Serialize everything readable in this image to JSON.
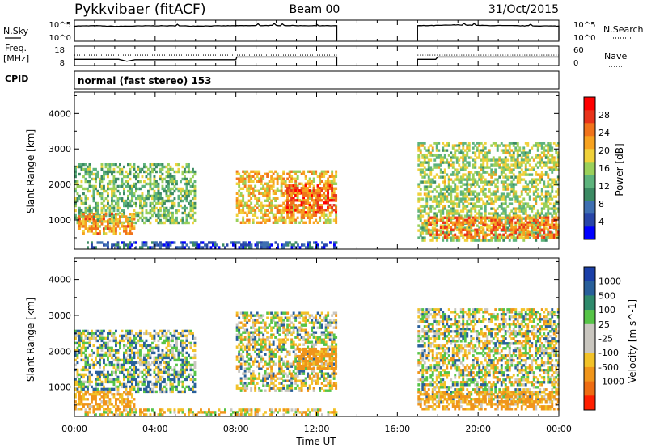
{
  "header": {
    "station": "Pykkvibaer (fitACF)",
    "beam": "Beam 00",
    "date": "31/Oct/2015"
  },
  "panels": {
    "nsky": {
      "left_label": "N.Sky",
      "right_label": "N.Search",
      "left_ticks": [
        "10^5",
        "10^0"
      ],
      "right_ticks": [
        "10^5",
        "10^0"
      ]
    },
    "freq": {
      "left_label_1": "Freq.",
      "left_label_2": "[MHz]",
      "right_label": "Nave",
      "left_ticks": [
        "18",
        "8"
      ],
      "right_ticks": [
        "60",
        "0"
      ]
    },
    "cpid": {
      "label": "CPID",
      "text": "normal (fast stereo) 153"
    }
  },
  "colors": {
    "power_scale": [
      "#0000ff",
      "#2845a8",
      "#3e6fb1",
      "#3b8a63",
      "#5db37c",
      "#9ad05a",
      "#f0d13a",
      "#f7a21f",
      "#f1731b",
      "#e8331a",
      "#ff0000"
    ],
    "velocity_scale": [
      "#1a3fa8",
      "#285f9a",
      "#2e8a6b",
      "#56c447",
      "#c9c6bf",
      "#c9c6bf",
      "#f2c228",
      "#f0951a",
      "#ee6c12",
      "#ff1f00"
    ]
  },
  "chart_data": [
    {
      "type": "line",
      "panel": "N.Sky / N.Search",
      "xlabel": "",
      "ylabel": "N.Sky",
      "x_unit": "hours UT",
      "xlim": [
        0,
        24
      ],
      "ylim_log10": [
        0,
        5
      ],
      "gaps": [
        [
          13.0,
          17.0
        ]
      ],
      "series": [
        {
          "name": "N.Sky",
          "style": "solid",
          "x": [
            0,
            1,
            2,
            3,
            4,
            6,
            8,
            10,
            12,
            13
          ],
          "y_log10": [
            4.1,
            4.2,
            4.0,
            4.1,
            4.2,
            4.1,
            4.2,
            4.3,
            4.2,
            4.2
          ]
        },
        {
          "name": "N.Search",
          "style": "dotted",
          "x": [
            17,
            18,
            19,
            20,
            22,
            24
          ],
          "y_log10": [
            4.2,
            4.3,
            4.5,
            4.3,
            4.2,
            4.1
          ]
        }
      ]
    },
    {
      "type": "line",
      "panel": "Freq. / Nave",
      "ylabel": "Freq. [MHz]",
      "xlim": [
        0,
        24
      ],
      "ylim": [
        8,
        18
      ],
      "gaps": [
        [
          13.0,
          17.0
        ]
      ],
      "series": [
        {
          "name": "Freq.",
          "style": "solid",
          "x": [
            0,
            2.2,
            2.6,
            3.0,
            8.0,
            8.05,
            13,
            17,
            17.9,
            18.0,
            24
          ],
          "y": [
            11.2,
            11.2,
            10.2,
            11.0,
            11.0,
            12.4,
            12.4,
            11.2,
            11.2,
            12.4,
            12.4
          ]
        },
        {
          "name": "Nave",
          "style": "dotted",
          "x": [
            0,
            13,
            17,
            24
          ],
          "y": [
            13.4,
            13.4,
            13.4,
            13.4
          ]
        }
      ]
    },
    {
      "type": "heatmap",
      "panel": "Power",
      "ylabel": "Slant Range [km]",
      "colorbar_label": "Power [dB]",
      "xlim": [
        0,
        24
      ],
      "ylim": [
        180,
        4600
      ],
      "yticks": [
        1000,
        2000,
        3000,
        4000
      ],
      "colorbar_ticks": [
        4,
        8,
        12,
        16,
        20,
        24,
        28
      ],
      "colorbar_range": [
        0,
        32
      ],
      "echo_regions_hours_km": [
        {
          "t": [
            0.0,
            6.0
          ],
          "range": [
            900,
            2600
          ],
          "level_db": 14
        },
        {
          "t": [
            0.2,
            3.0
          ],
          "range": [
            600,
            1200
          ],
          "level_db": 22
        },
        {
          "t": [
            8.0,
            13.0
          ],
          "range": [
            900,
            2400
          ],
          "level_db": 20
        },
        {
          "t": [
            10.5,
            13.0
          ],
          "range": [
            1200,
            2000
          ],
          "level_db": 26
        },
        {
          "t": [
            17.0,
            24.0
          ],
          "range": [
            400,
            3200
          ],
          "level_db": 16
        },
        {
          "t": [
            17.5,
            24.0
          ],
          "range": [
            500,
            1100
          ],
          "level_db": 24
        },
        {
          "t": [
            0.5,
            13.0
          ],
          "range": [
            200,
            400
          ],
          "level_db": 6
        }
      ]
    },
    {
      "type": "heatmap",
      "panel": "Velocity",
      "ylabel": "Slant Range [km]",
      "colorbar_label": "Velocity [m s^-1]",
      "xlim": [
        0,
        24
      ],
      "ylim": [
        180,
        4600
      ],
      "yticks": [
        1000,
        2000,
        3000,
        4000
      ],
      "colorbar_ticks": [
        1000,
        500,
        100,
        25,
        -25,
        -100,
        -500,
        -1000
      ],
      "echo_regions_hours_km": [
        {
          "t": [
            0.0,
            6.0
          ],
          "range": [
            900,
            2600
          ],
          "velocity": 50
        },
        {
          "t": [
            0.0,
            3.0
          ],
          "range": [
            400,
            900
          ],
          "velocity": -150
        },
        {
          "t": [
            8.0,
            13.0
          ],
          "range": [
            900,
            3100
          ],
          "velocity": 0
        },
        {
          "t": [
            11.0,
            13.0
          ],
          "range": [
            1500,
            2100
          ],
          "velocity": -200
        },
        {
          "t": [
            17.0,
            24.0
          ],
          "range": [
            600,
            3200
          ],
          "velocity": 0
        },
        {
          "t": [
            17.0,
            24.0
          ],
          "range": [
            400,
            900
          ],
          "velocity": -150
        },
        {
          "t": [
            0.5,
            13.0
          ],
          "range": [
            200,
            400
          ],
          "velocity": -60
        }
      ]
    }
  ],
  "xaxis": {
    "label": "Time UT",
    "ticks": [
      "00:00",
      "04:00",
      "08:00",
      "12:00",
      "16:00",
      "20:00",
      "00:00"
    ]
  }
}
